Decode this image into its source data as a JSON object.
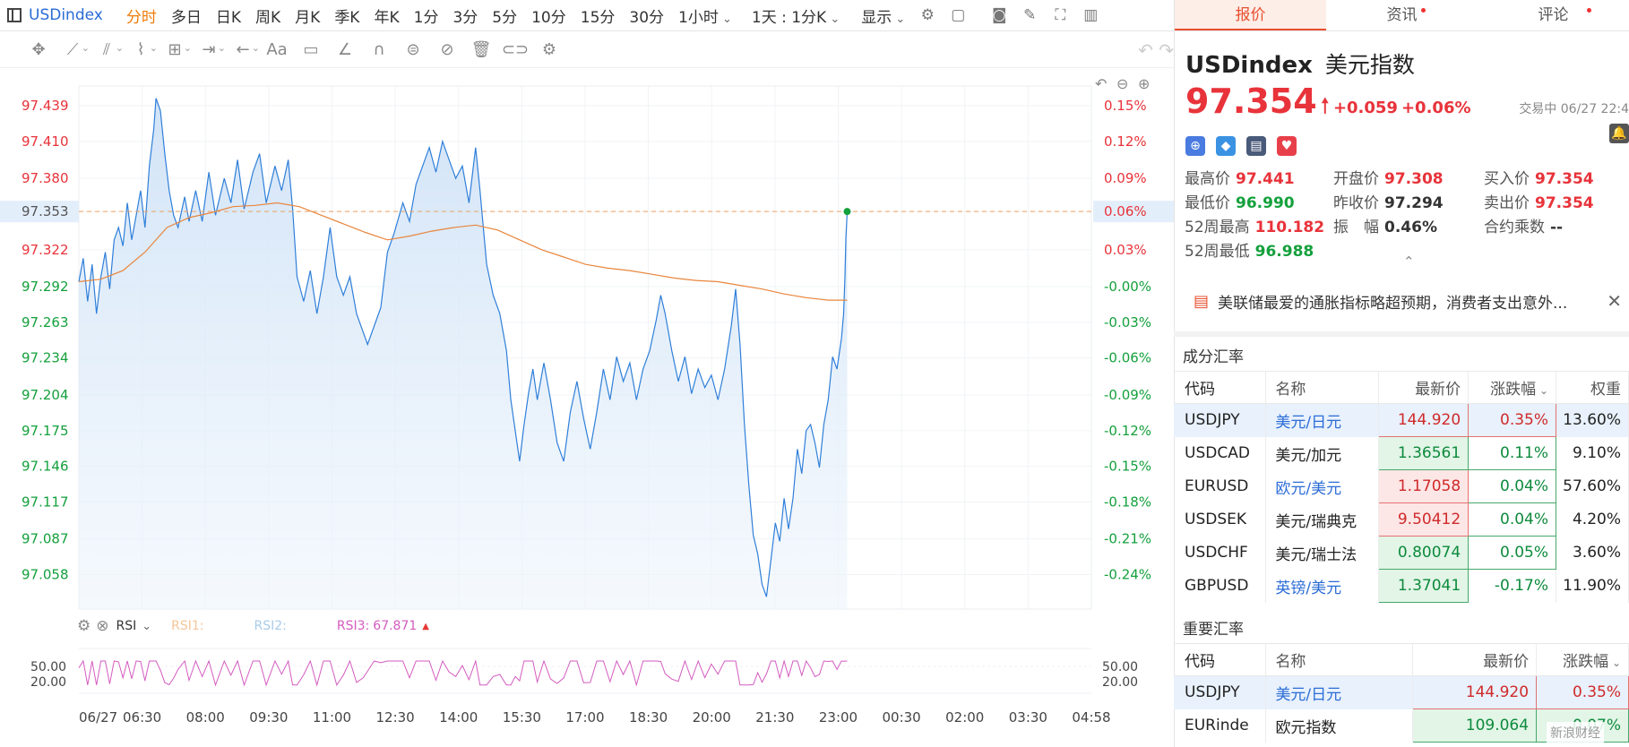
{
  "toolbar": {
    "symbol": "USDindex",
    "timeframes": [
      {
        "label": "分时",
        "active": true
      },
      {
        "label": "多日"
      },
      {
        "label": "日K"
      },
      {
        "label": "周K"
      },
      {
        "label": "月K"
      },
      {
        "label": "季K"
      },
      {
        "label": "年K"
      },
      {
        "label": "1分"
      },
      {
        "label": "3分"
      },
      {
        "label": "5分"
      },
      {
        "label": "10分"
      },
      {
        "label": "15分"
      },
      {
        "label": "30分"
      }
    ],
    "hour_dropdown": "1小时",
    "period_dropdown": "1天 : 1分K",
    "display_dropdown": "显示"
  },
  "drawing_tools": [
    "crosshair-icon",
    "line-icon",
    "channel-icon",
    "pattern-icon",
    "fib-icon",
    "measure-icon",
    "arrow-icon",
    "text-icon",
    "note-icon",
    "ruler-icon",
    "magnet-icon",
    "lock-icon",
    "hide-icon",
    "trash-icon",
    "link-icon",
    "settings-icon"
  ],
  "drawing_text_tool": "Aa",
  "chart_data": {
    "type": "line",
    "price_axis_ticks": [
      "97.439",
      "97.410",
      "97.380",
      "97.353",
      "97.322",
      "97.292",
      "97.263",
      "97.234",
      "97.204",
      "97.175",
      "97.146",
      "97.117",
      "97.087",
      "97.058"
    ],
    "pct_axis_ticks": [
      "0.15%",
      "0.12%",
      "0.09%",
      "0.06%",
      "0.03%",
      "-0.00%",
      "-0.03%",
      "-0.06%",
      "-0.09%",
      "-0.12%",
      "-0.15%",
      "-0.18%",
      "-0.21%",
      "-0.24%"
    ],
    "current_price_label": "97.353",
    "current_pct_label": "0.06%",
    "time_ticks": [
      "06/27",
      "06:30",
      "08:00",
      "09:30",
      "11:00",
      "12:30",
      "14:00",
      "15:30",
      "17:00",
      "18:30",
      "20:00",
      "21:30",
      "23:00",
      "00:30",
      "02:00",
      "03:30",
      "04:58"
    ],
    "prev_close": 97.294,
    "ylim": [
      97.03,
      97.455
    ],
    "x_range_hours": [
      0,
      22.97
    ],
    "price_series": {
      "name": "USDindex",
      "color": "#2f7fd9",
      "points": [
        [
          0,
          97.296
        ],
        [
          0.1,
          97.315
        ],
        [
          0.2,
          97.28
        ],
        [
          0.3,
          97.31
        ],
        [
          0.4,
          97.27
        ],
        [
          0.5,
          97.3
        ],
        [
          0.6,
          97.32
        ],
        [
          0.7,
          97.29
        ],
        [
          0.8,
          97.33
        ],
        [
          0.9,
          97.34
        ],
        [
          1.0,
          97.325
        ],
        [
          1.1,
          97.36
        ],
        [
          1.2,
          97.33
        ],
        [
          1.3,
          97.35
        ],
        [
          1.4,
          97.37
        ],
        [
          1.5,
          97.34
        ],
        [
          1.6,
          97.39
        ],
        [
          1.7,
          97.42
        ],
        [
          1.75,
          97.445
        ],
        [
          1.85,
          97.435
        ],
        [
          1.95,
          97.4
        ],
        [
          2.05,
          97.37
        ],
        [
          2.15,
          97.35
        ],
        [
          2.25,
          97.34
        ],
        [
          2.4,
          97.365
        ],
        [
          2.5,
          97.345
        ],
        [
          2.65,
          97.37
        ],
        [
          2.8,
          97.345
        ],
        [
          2.95,
          97.385
        ],
        [
          3.1,
          97.35
        ],
        [
          3.3,
          97.38
        ],
        [
          3.45,
          97.36
        ],
        [
          3.6,
          97.395
        ],
        [
          3.75,
          97.355
        ],
        [
          3.95,
          97.385
        ],
        [
          4.1,
          97.4
        ],
        [
          4.25,
          97.36
        ],
        [
          4.45,
          97.39
        ],
        [
          4.6,
          97.37
        ],
        [
          4.75,
          97.395
        ],
        [
          4.85,
          97.355
        ],
        [
          4.95,
          97.3
        ],
        [
          5.1,
          97.28
        ],
        [
          5.25,
          97.305
        ],
        [
          5.4,
          97.27
        ],
        [
          5.55,
          97.3
        ],
        [
          5.7,
          97.34
        ],
        [
          5.85,
          97.3
        ],
        [
          6.0,
          97.285
        ],
        [
          6.15,
          97.3
        ],
        [
          6.3,
          97.27
        ],
        [
          6.45,
          97.255
        ],
        [
          6.55,
          97.245
        ],
        [
          6.7,
          97.26
        ],
        [
          6.85,
          97.275
        ],
        [
          7.0,
          97.32
        ],
        [
          7.15,
          97.335
        ],
        [
          7.35,
          97.36
        ],
        [
          7.5,
          97.345
        ],
        [
          7.65,
          97.375
        ],
        [
          7.8,
          97.39
        ],
        [
          7.95,
          97.405
        ],
        [
          8.1,
          97.385
        ],
        [
          8.25,
          97.41
        ],
        [
          8.4,
          97.395
        ],
        [
          8.55,
          97.38
        ],
        [
          8.7,
          97.39
        ],
        [
          8.85,
          97.36
        ],
        [
          9.0,
          97.405
        ],
        [
          9.1,
          97.37
        ],
        [
          9.25,
          97.31
        ],
        [
          9.4,
          97.285
        ],
        [
          9.55,
          97.27
        ],
        [
          9.7,
          97.24
        ],
        [
          9.8,
          97.2
        ],
        [
          9.9,
          97.175
        ],
        [
          10.0,
          97.15
        ],
        [
          10.1,
          97.18
        ],
        [
          10.2,
          97.205
        ],
        [
          10.3,
          97.225
        ],
        [
          10.4,
          97.2
        ],
        [
          10.55,
          97.23
        ],
        [
          10.7,
          97.2
        ],
        [
          10.85,
          97.165
        ],
        [
          11.0,
          97.15
        ],
        [
          11.15,
          97.19
        ],
        [
          11.3,
          97.215
        ],
        [
          11.45,
          97.185
        ],
        [
          11.6,
          97.16
        ],
        [
          11.75,
          97.19
        ],
        [
          11.9,
          97.225
        ],
        [
          12.05,
          97.2
        ],
        [
          12.2,
          97.235
        ],
        [
          12.35,
          97.215
        ],
        [
          12.5,
          97.23
        ],
        [
          12.65,
          97.2
        ],
        [
          12.8,
          97.225
        ],
        [
          12.95,
          97.24
        ],
        [
          13.1,
          97.265
        ],
        [
          13.2,
          97.285
        ],
        [
          13.3,
          97.27
        ],
        [
          13.45,
          97.24
        ],
        [
          13.6,
          97.215
        ],
        [
          13.75,
          97.235
        ],
        [
          13.9,
          97.205
        ],
        [
          14.05,
          97.225
        ],
        [
          14.2,
          97.21
        ],
        [
          14.35,
          97.22
        ],
        [
          14.5,
          97.2
        ],
        [
          14.65,
          97.225
        ],
        [
          14.8,
          97.26
        ],
        [
          14.9,
          97.29
        ],
        [
          15.0,
          97.245
        ],
        [
          15.1,
          97.18
        ],
        [
          15.2,
          97.13
        ],
        [
          15.3,
          97.09
        ],
        [
          15.4,
          97.075
        ],
        [
          15.5,
          97.05
        ],
        [
          15.6,
          97.04
        ],
        [
          15.7,
          97.07
        ],
        [
          15.8,
          97.1
        ],
        [
          15.9,
          97.085
        ],
        [
          16.0,
          97.12
        ],
        [
          16.1,
          97.095
        ],
        [
          16.2,
          97.12
        ],
        [
          16.3,
          97.16
        ],
        [
          16.4,
          97.14
        ],
        [
          16.5,
          97.175
        ],
        [
          16.6,
          97.18
        ],
        [
          16.7,
          97.165
        ],
        [
          16.8,
          97.145
        ],
        [
          16.9,
          97.18
        ],
        [
          17.0,
          97.2
        ],
        [
          17.1,
          97.235
        ],
        [
          17.2,
          97.225
        ],
        [
          17.3,
          97.25
        ],
        [
          17.35,
          97.27
        ],
        [
          17.38,
          97.3
        ],
        [
          17.4,
          97.331
        ],
        [
          17.43,
          97.353
        ]
      ]
    },
    "ma_series": {
      "name": "average",
      "color": "#e8853c",
      "points": [
        [
          0,
          97.296
        ],
        [
          0.5,
          97.298
        ],
        [
          1.0,
          97.305
        ],
        [
          1.5,
          97.32
        ],
        [
          2.0,
          97.34
        ],
        [
          2.5,
          97.348
        ],
        [
          3.0,
          97.352
        ],
        [
          3.5,
          97.357
        ],
        [
          4.0,
          97.358
        ],
        [
          4.5,
          97.36
        ],
        [
          5.0,
          97.357
        ],
        [
          5.5,
          97.35
        ],
        [
          6.0,
          97.343
        ],
        [
          6.5,
          97.336
        ],
        [
          7.0,
          97.33
        ],
        [
          7.5,
          97.333
        ],
        [
          8.0,
          97.337
        ],
        [
          8.5,
          97.34
        ],
        [
          9.0,
          97.342
        ],
        [
          9.5,
          97.338
        ],
        [
          10.0,
          97.33
        ],
        [
          10.5,
          97.322
        ],
        [
          11.0,
          97.316
        ],
        [
          11.5,
          97.31
        ],
        [
          12.0,
          97.307
        ],
        [
          12.5,
          97.305
        ],
        [
          13.0,
          97.302
        ],
        [
          13.5,
          97.299
        ],
        [
          14.0,
          97.297
        ],
        [
          14.5,
          97.296
        ],
        [
          15.0,
          97.293
        ],
        [
          15.5,
          97.29
        ],
        [
          16.0,
          97.286
        ],
        [
          16.5,
          97.283
        ],
        [
          17.0,
          97.281
        ],
        [
          17.43,
          97.281
        ]
      ]
    },
    "rsi": {
      "labels": [
        "RSI1:",
        "RSI2:",
        "RSI3:"
      ],
      "rsi3_value": "67.871",
      "ticks": [
        "50.00",
        "20.00"
      ],
      "series3_color": "#d45bbf"
    }
  },
  "chart_controls": {
    "undo_label": "↶",
    "minus_label": "⊖",
    "plus_label": "⊕"
  },
  "rsi_legend": {
    "name": "RSI",
    "rsi1": "RSI1:",
    "rsi2": "RSI2:",
    "rsi3": "RSI3:",
    "rsi3_value": "67.871"
  },
  "panel": {
    "tabs": [
      "报价",
      "资讯",
      "评论"
    ],
    "title_code": "USDindex",
    "title_name": "美元指数",
    "price": "97.354",
    "change": "+0.059",
    "change_pct": "+0.06%",
    "status": "交易中 06/27 22:4",
    "stats": {
      "high_label": "最高价",
      "high": "97.441",
      "open_label": "开盘价",
      "open": "97.308",
      "bid_label": "买入价",
      "bid": "97.354",
      "low_label": "最低价",
      "low": "96.990",
      "prev_label": "昨收价",
      "prev": "97.294",
      "ask_label": "卖出价",
      "ask": "97.354",
      "w52h_label": "52周最高",
      "w52h": "110.182",
      "amp_label": "振　幅",
      "amp": "0.46%",
      "mult_label": "合约乘数",
      "mult": "--",
      "w52l_label": "52周最低",
      "w52l": "96.988"
    },
    "news": "美联储最爱的通胀指标略超预期，消费者支出意外...",
    "components_title": "成分汇率",
    "components_headers": [
      "代码",
      "名称",
      "最新价",
      "涨跌幅",
      "权重"
    ],
    "components": [
      {
        "code": "USDJPY",
        "name": "美元/日元",
        "price": "144.920",
        "pct": "0.35%",
        "weight": "13.60%"
      },
      {
        "code": "USDCAD",
        "name": "美元/加元",
        "price": "1.36561",
        "pct": "0.11%",
        "weight": "9.10%"
      },
      {
        "code": "EURUSD",
        "name": "欧元/美元",
        "price": "1.17058",
        "pct": "0.04%",
        "weight": "57.60%"
      },
      {
        "code": "USDSEK",
        "name": "美元/瑞典克",
        "price": "9.50412",
        "pct": "0.04%",
        "weight": "4.20%"
      },
      {
        "code": "USDCHF",
        "name": "美元/瑞士法",
        "price": "0.80074",
        "pct": "0.05%",
        "weight": "3.60%"
      },
      {
        "code": "GBPUSD",
        "name": "英镑/美元",
        "price": "1.37041",
        "pct": "-0.17%",
        "weight": "11.90%"
      }
    ],
    "key_title": "重要汇率",
    "key_headers": [
      "代码",
      "名称",
      "最新价",
      "涨跌幅"
    ],
    "key_rates": [
      {
        "code": "USDJPY",
        "name": "美元/日元",
        "price": "144.920",
        "pct": "0.35%"
      },
      {
        "code": "EURinde",
        "name": "欧元指数",
        "price": "109.064",
        "pct": "0.07%"
      }
    ],
    "watermark": "新浪财经"
  }
}
